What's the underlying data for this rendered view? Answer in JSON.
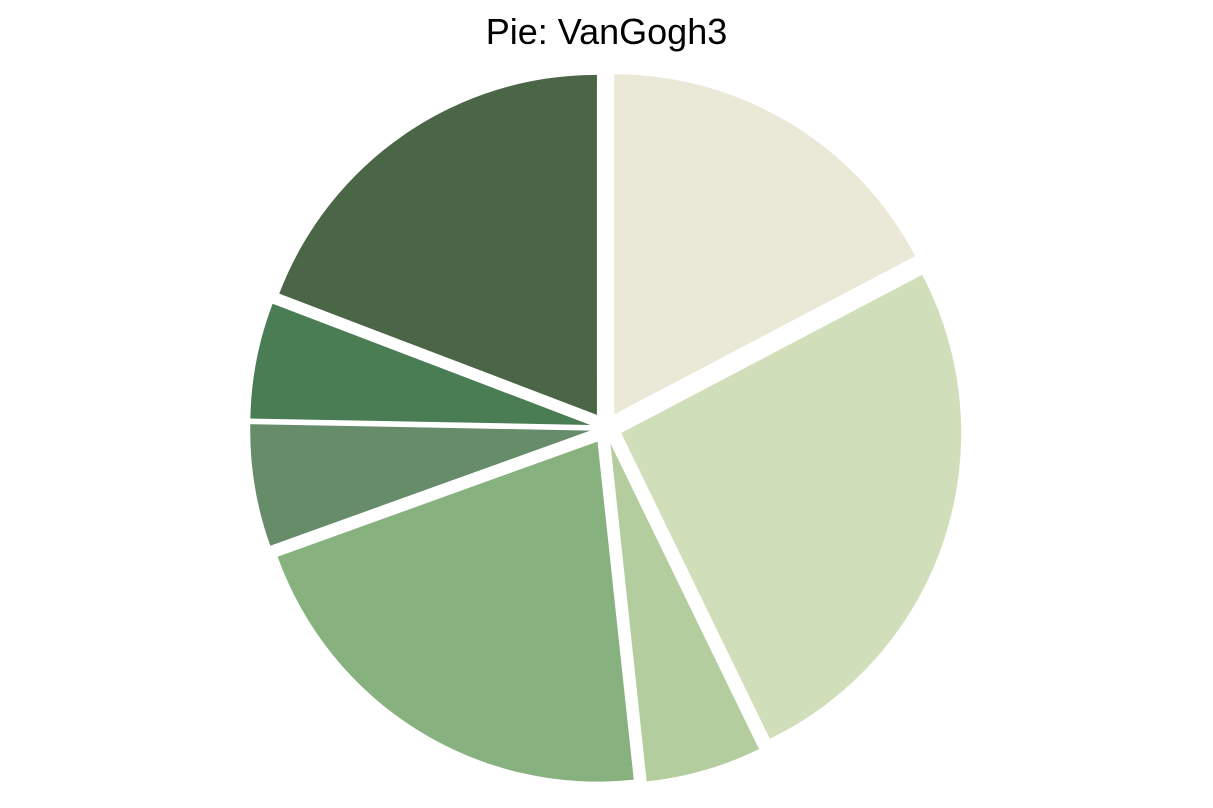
{
  "chart_data": {
    "type": "pie",
    "title": "Pie: VanGogh3",
    "start": "top",
    "direction": "clockwise",
    "exploded": true,
    "legend": "none",
    "slices": [
      {
        "value": 17.3,
        "color": "#EAE8D6"
      },
      {
        "value": 25.5,
        "color": "#D0DFB9"
      },
      {
        "value": 5.5,
        "color": "#B3CD9F"
      },
      {
        "value": 21.2,
        "color": "#87B17F"
      },
      {
        "value": 5.8,
        "color": "#678C6A"
      },
      {
        "value": 5.5,
        "color": "#4A7D54"
      },
      {
        "value": 19.2,
        "color": "#4B6646"
      }
    ]
  }
}
